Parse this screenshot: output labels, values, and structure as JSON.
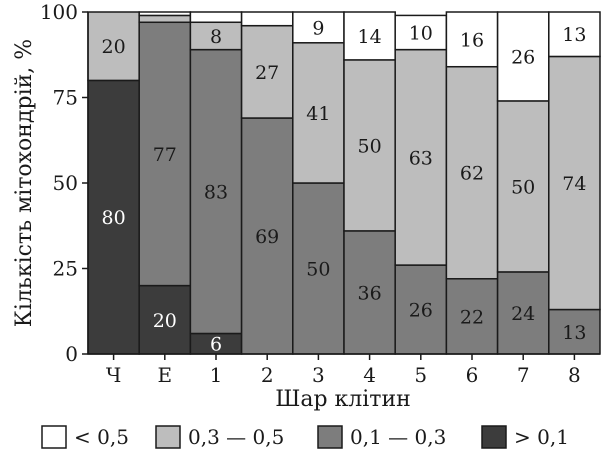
{
  "chart_data": {
    "type": "bar",
    "stacked": true,
    "ylabel": "Кількість мітохондрій, %",
    "xlabel": "Шар клітин",
    "ylim": [
      0,
      100
    ],
    "yticks": [
      "0",
      "25",
      "50",
      "75",
      "100"
    ],
    "categories": [
      "Ч",
      "Е",
      "1",
      "2",
      "3",
      "4",
      "5",
      "6",
      "7",
      "8"
    ],
    "series": [
      {
        "name": "> 0,1",
        "color": "#3c3c3c",
        "text_color": "#ffffff",
        "values": [
          80,
          20,
          6,
          0,
          0,
          0,
          0,
          0,
          0,
          0
        ],
        "labels": [
          "80",
          "20",
          "6",
          "",
          "",
          "",
          "",
          "",
          "",
          ""
        ]
      },
      {
        "name": "0,1 — 0,3",
        "color": "#7d7d7d",
        "text_color": "#1a1a1a",
        "values": [
          0,
          77,
          83,
          69,
          50,
          36,
          26,
          22,
          24,
          13
        ],
        "labels": [
          "",
          "77",
          "83",
          "69",
          "50",
          "36",
          "26",
          "22",
          "24",
          "13"
        ]
      },
      {
        "name": "0,3 — 0,5",
        "color": "#bdbdbd",
        "text_color": "#1a1a1a",
        "values": [
          20,
          2,
          8,
          27,
          41,
          50,
          63,
          62,
          50,
          74
        ],
        "labels": [
          "20",
          "",
          "8",
          "27",
          "41",
          "50",
          "63",
          "62",
          "50",
          "74"
        ]
      },
      {
        "name": "< 0,5",
        "color": "#ffffff",
        "text_color": "#1a1a1a",
        "values": [
          0,
          1,
          3,
          4,
          9,
          14,
          10,
          16,
          26,
          13
        ],
        "labels": [
          "",
          "",
          "",
          "",
          "9",
          "14",
          "10",
          "16",
          "26",
          "13"
        ]
      }
    ],
    "legend_order": [
      "< 0,5",
      "0,3 — 0,5",
      "0,1 — 0,3",
      "> 0,1"
    ],
    "legend_position": "bottom",
    "grid": false
  }
}
